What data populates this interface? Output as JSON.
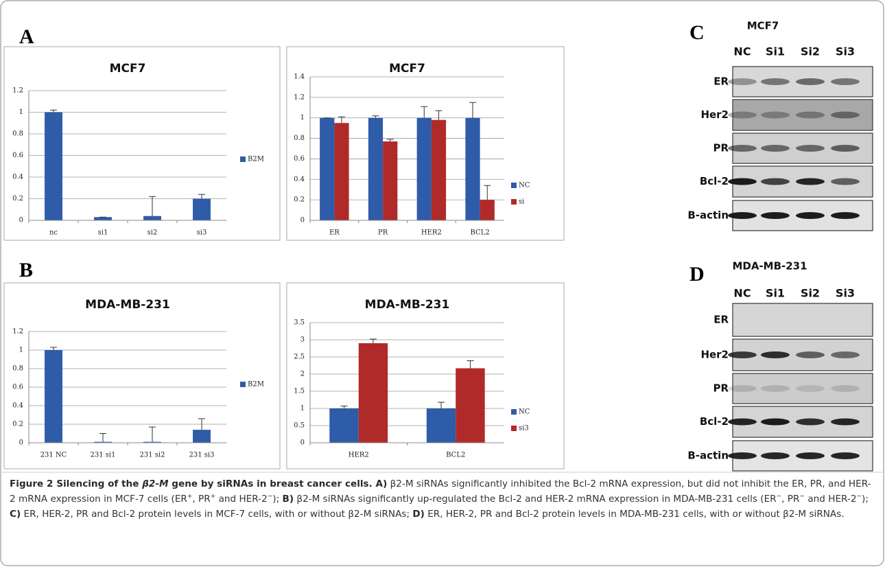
{
  "panel_labels": [
    "A",
    "B",
    "C",
    "D"
  ],
  "chart_data": [
    {
      "type": "bar",
      "title": "MCF7",
      "categories": [
        "nc",
        "si1",
        "si2",
        "si3"
      ],
      "series": [
        {
          "name": "B2M",
          "color": "#2f5ca8",
          "values": [
            1,
            0.03,
            0.04,
            0.2
          ],
          "errors": [
            0.02,
            0,
            0.18,
            0.04
          ]
        }
      ],
      "ylim": [
        0,
        1.2
      ],
      "yticks": [
        0,
        0.2,
        0.4,
        0.6,
        0.8,
        1,
        1.2
      ],
      "grid": true
    },
    {
      "type": "bar",
      "title": "MCF7",
      "categories": [
        "ER",
        "PR",
        "HER2",
        "BCL2"
      ],
      "series": [
        {
          "name": "NC",
          "color": "#2f5ca8",
          "values": [
            1,
            1,
            1,
            1
          ],
          "errors": [
            0,
            0.02,
            0.11,
            0.15
          ]
        },
        {
          "name": "si",
          "color": "#b02a2a",
          "values": [
            0.95,
            0.77,
            0.98,
            0.2
          ],
          "errors": [
            0.06,
            0.02,
            0.09,
            0.14
          ]
        }
      ],
      "ylim": [
        0,
        1.4
      ],
      "yticks": [
        0,
        0.2,
        0.4,
        0.6,
        0.8,
        1,
        1.2,
        1.4
      ],
      "grid": true
    },
    {
      "type": "bar",
      "title": "MDA-MB-231",
      "categories": [
        "231 NC",
        "231 si1",
        "231 si2",
        "231 si3"
      ],
      "series": [
        {
          "name": "B2M",
          "color": "#2f5ca8",
          "values": [
            1,
            0.01,
            0.01,
            0.14
          ],
          "errors": [
            0.03,
            0.09,
            0.16,
            0.12
          ]
        }
      ],
      "ylim": [
        0,
        1.2
      ],
      "yticks": [
        0,
        0.2,
        0.4,
        0.6,
        0.8,
        1,
        1.2
      ],
      "grid": true
    },
    {
      "type": "bar",
      "title": "MDA-MB-231",
      "categories": [
        "HER2",
        "BCL2"
      ],
      "series": [
        {
          "name": "NC",
          "color": "#2f5ca8",
          "values": [
            1,
            1
          ],
          "errors": [
            0.07,
            0.18
          ]
        },
        {
          "name": "si3",
          "color": "#b02a2a",
          "values": [
            2.9,
            2.17
          ],
          "errors": [
            0.12,
            0.22
          ]
        }
      ],
      "ylim": [
        0,
        3.5
      ],
      "yticks": [
        0,
        0.5,
        1,
        1.5,
        2,
        2.5,
        3,
        3.5
      ],
      "grid": true
    }
  ],
  "blots": [
    {
      "title": "MCF7",
      "lanes": [
        "NC",
        "Si1",
        "Si2",
        "Si3"
      ],
      "rows": [
        "ER",
        "Her2",
        "PR",
        "Bcl-2",
        "B-actin"
      ]
    },
    {
      "title": "MDA-MB-231",
      "lanes": [
        "NC",
        "Si1",
        "Si2",
        "Si3"
      ],
      "rows": [
        "ER",
        "Her2",
        "PR",
        "Bcl-2",
        "B-actin"
      ]
    }
  ],
  "caption": {
    "runs": [
      "Figure 2 Silencing of the ",
      "β2-M",
      " gene by siRNAs in breast cancer cells.",
      " A)",
      " β2-M siRNAs significantly inhibited the Bcl-2 mRNA expression, but did not inhibit the ER, PR, and HER-2 mRNA expression in MCF-7 cells (ER",
      "+",
      ", PR",
      "+",
      " and HER-2",
      "−",
      "); ",
      "B)",
      " β2-M siRNAs significantly up-regulated the Bcl-2 and HER-2 mRNA expression in MDA-MB-231 cells (ER",
      "−",
      ", PR",
      "−",
      " and HER-2",
      "−",
      "); ",
      "C)",
      " ER, HER-2, PR and Bcl-2 protein levels in MCF-7 cells, with or without β2-M siRNAs; ",
      "D)",
      " ER, HER-2, PR and Bcl-2 protein levels in MDA-MB-231 cells, with or without β2-M siRNAs."
    ]
  }
}
